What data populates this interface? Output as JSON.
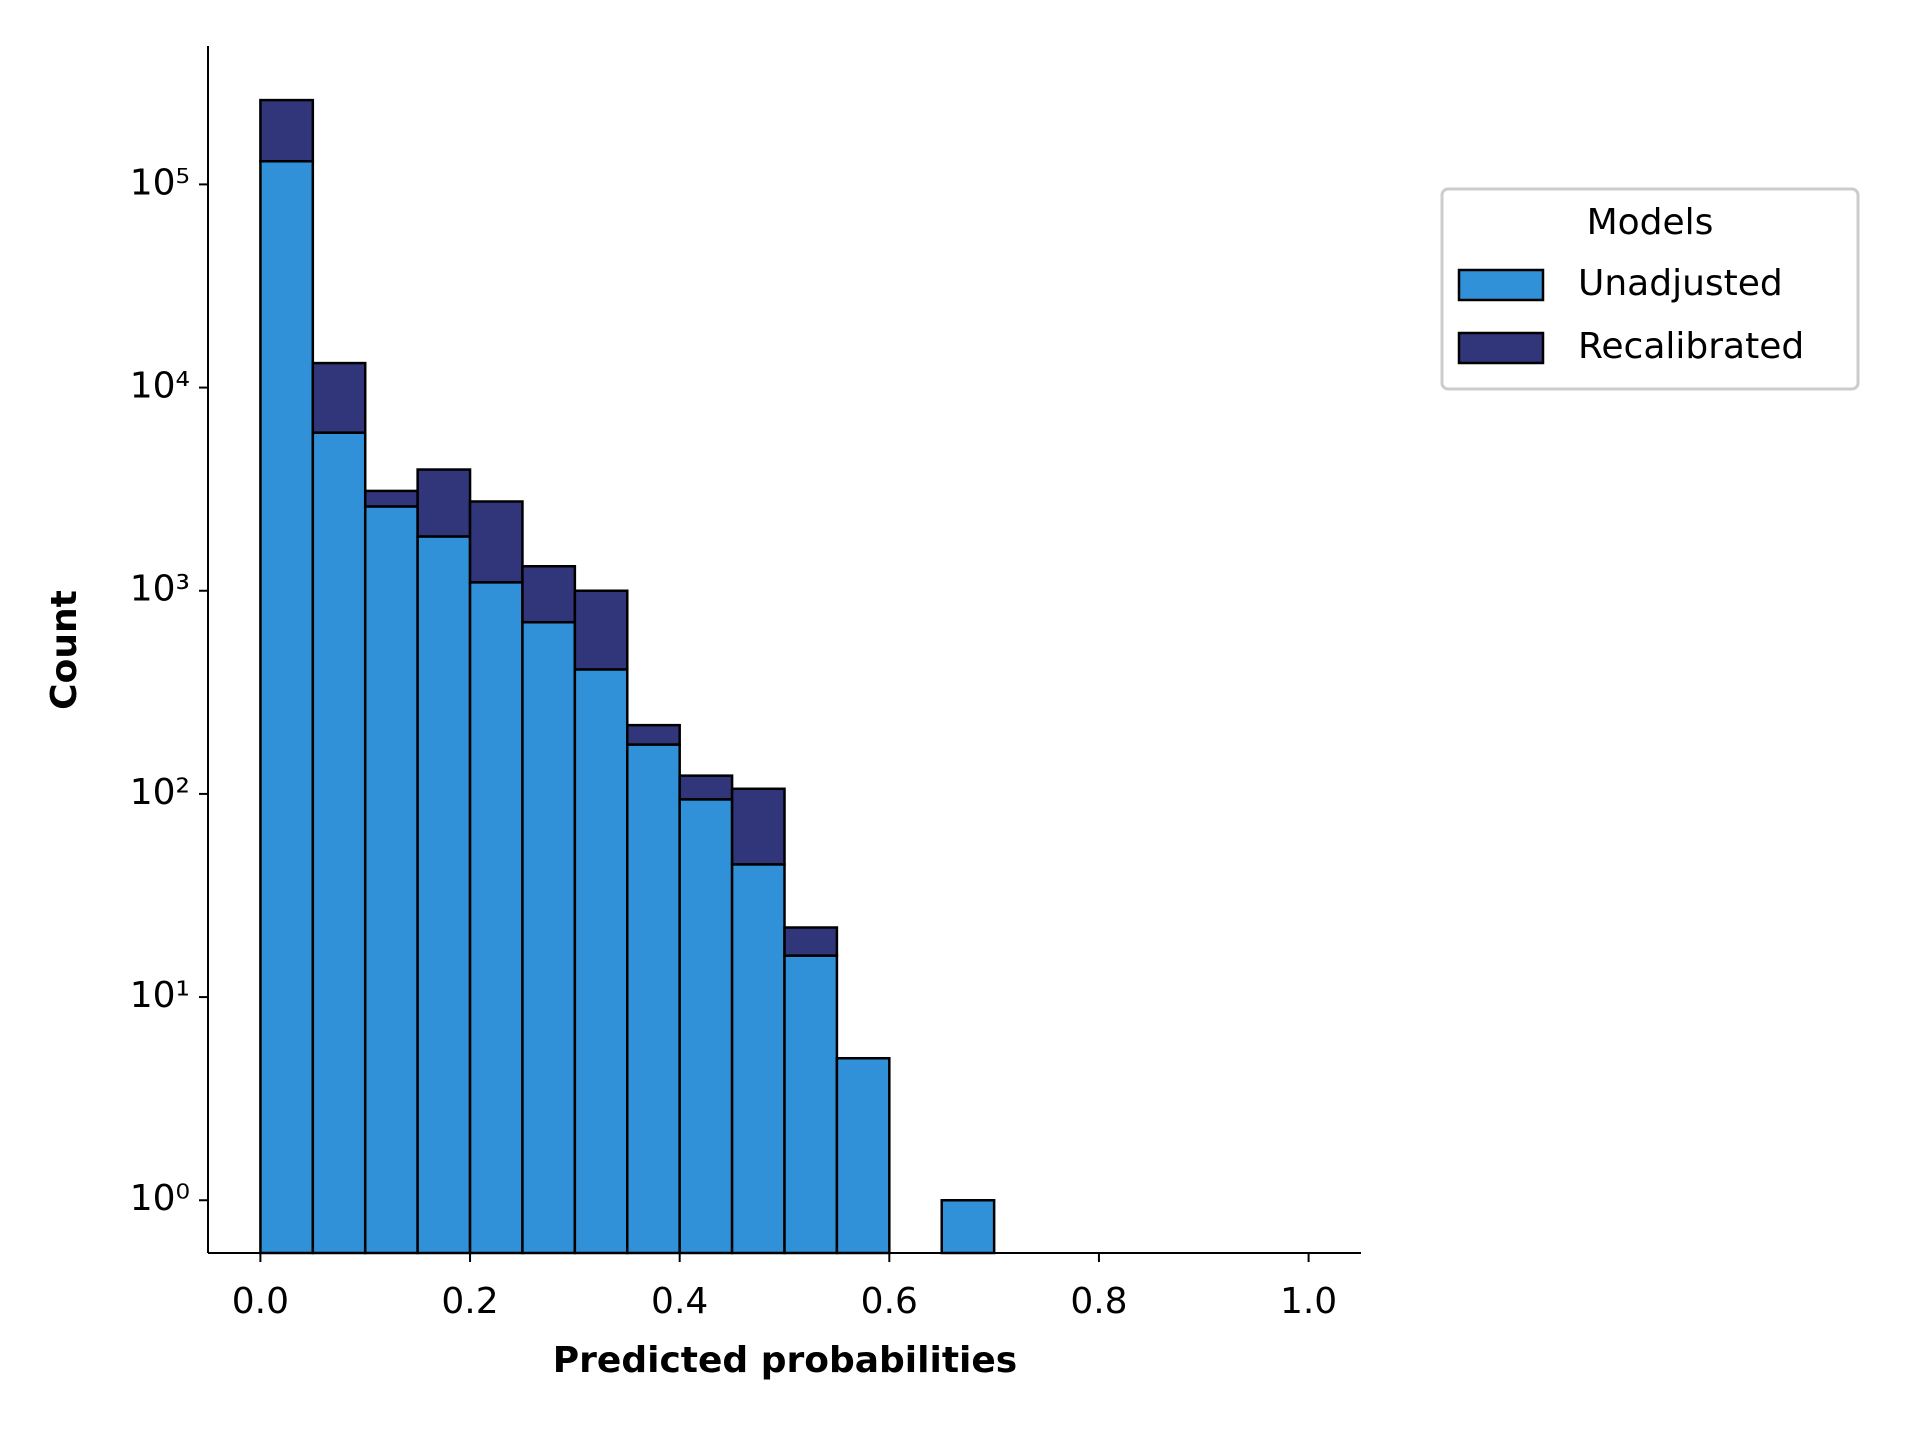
{
  "chart_data": {
    "type": "stacked_histogram",
    "xlabel": "Predicted probabilities",
    "ylabel": "Count",
    "bins": [
      0.0,
      0.05,
      0.1,
      0.15,
      0.2,
      0.25,
      0.3,
      0.35,
      0.4,
      0.45,
      0.5,
      0.55,
      0.6,
      0.65,
      0.7,
      0.75,
      0.8,
      0.85,
      0.9,
      0.95,
      1.0
    ],
    "series": [
      {
        "name": "Unadjusted",
        "color": "#3090d8",
        "values": [
          130000,
          6000,
          2600,
          1850,
          1100,
          700,
          410,
          175,
          94,
          45,
          16,
          5,
          0,
          1,
          0,
          0,
          0,
          0,
          0,
          0
        ]
      },
      {
        "name": "Recalibrated",
        "color": "#31357a",
        "values": [
          130000,
          7200,
          500,
          2100,
          1650,
          620,
          590,
          43,
          29,
          61,
          6,
          0,
          0,
          0,
          0,
          0,
          0,
          0,
          0,
          0
        ]
      }
    ],
    "legend_title": "Models",
    "legend_position": "outside upper right",
    "log_y": true,
    "xlim": [
      -0.05,
      1.05
    ],
    "ylim": [
      0.55,
      480000
    ],
    "xticks": [
      {
        "value": 0,
        "label": "0.0"
      },
      0.2,
      0.4,
      0.6,
      0.8,
      {
        "value": 1,
        "label": "1.0"
      }
    ],
    "yticks": [
      {
        "value": 1,
        "label": "10⁰"
      },
      {
        "value": 10,
        "label": "10¹"
      },
      {
        "value": 100,
        "label": "10²"
      },
      {
        "value": 1000,
        "label": "10³"
      },
      {
        "value": 10000,
        "label": "10⁴"
      },
      {
        "value": 100000,
        "label": "10⁵"
      }
    ]
  }
}
